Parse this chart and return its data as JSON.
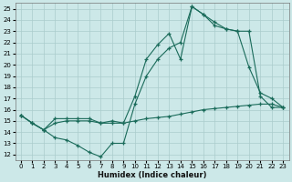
{
  "xlabel": "Humidex (Indice chaleur)",
  "bg_color": "#cce8e8",
  "grid_color": "#aacccc",
  "line_color": "#1a6b5a",
  "xlim": [
    -0.5,
    23.5
  ],
  "ylim": [
    11.5,
    25.5
  ],
  "xticks": [
    0,
    1,
    2,
    3,
    4,
    5,
    6,
    7,
    8,
    9,
    10,
    11,
    12,
    13,
    14,
    15,
    16,
    17,
    18,
    19,
    20,
    21,
    22,
    23
  ],
  "yticks": [
    12,
    13,
    14,
    15,
    16,
    17,
    18,
    19,
    20,
    21,
    22,
    23,
    24,
    25
  ],
  "line1_x": [
    0,
    1,
    2,
    3,
    4,
    5,
    6,
    7,
    8,
    9,
    10,
    11,
    12,
    13,
    14,
    15,
    16,
    17,
    18,
    19,
    20,
    21,
    22,
    23
  ],
  "line1_y": [
    15.5,
    14.8,
    14.2,
    13.5,
    13.3,
    12.8,
    12.2,
    11.8,
    13.0,
    13.0,
    16.5,
    19.0,
    20.5,
    21.5,
    22.0,
    25.2,
    24.5,
    23.5,
    23.2,
    23.0,
    19.8,
    17.5,
    17.0,
    16.2
  ],
  "line2_x": [
    0,
    1,
    2,
    3,
    4,
    5,
    6,
    7,
    8,
    9,
    10,
    11,
    12,
    13,
    14,
    15,
    16,
    17,
    18,
    19,
    20,
    21,
    22,
    23
  ],
  "line2_y": [
    15.5,
    14.8,
    14.2,
    15.2,
    15.2,
    15.2,
    15.2,
    14.8,
    15.0,
    14.8,
    17.2,
    20.5,
    21.8,
    22.8,
    20.5,
    25.2,
    24.5,
    23.8,
    23.2,
    23.0,
    23.0,
    17.2,
    16.2,
    16.2
  ],
  "line3_x": [
    0,
    1,
    2,
    3,
    4,
    5,
    6,
    7,
    8,
    9,
    10,
    11,
    12,
    13,
    14,
    15,
    16,
    17,
    18,
    19,
    20,
    21,
    22,
    23
  ],
  "line3_y": [
    15.5,
    14.8,
    14.2,
    14.8,
    15.0,
    15.0,
    15.0,
    14.8,
    14.8,
    14.8,
    15.0,
    15.2,
    15.3,
    15.4,
    15.6,
    15.8,
    16.0,
    16.1,
    16.2,
    16.3,
    16.4,
    16.5,
    16.5,
    16.2
  ]
}
